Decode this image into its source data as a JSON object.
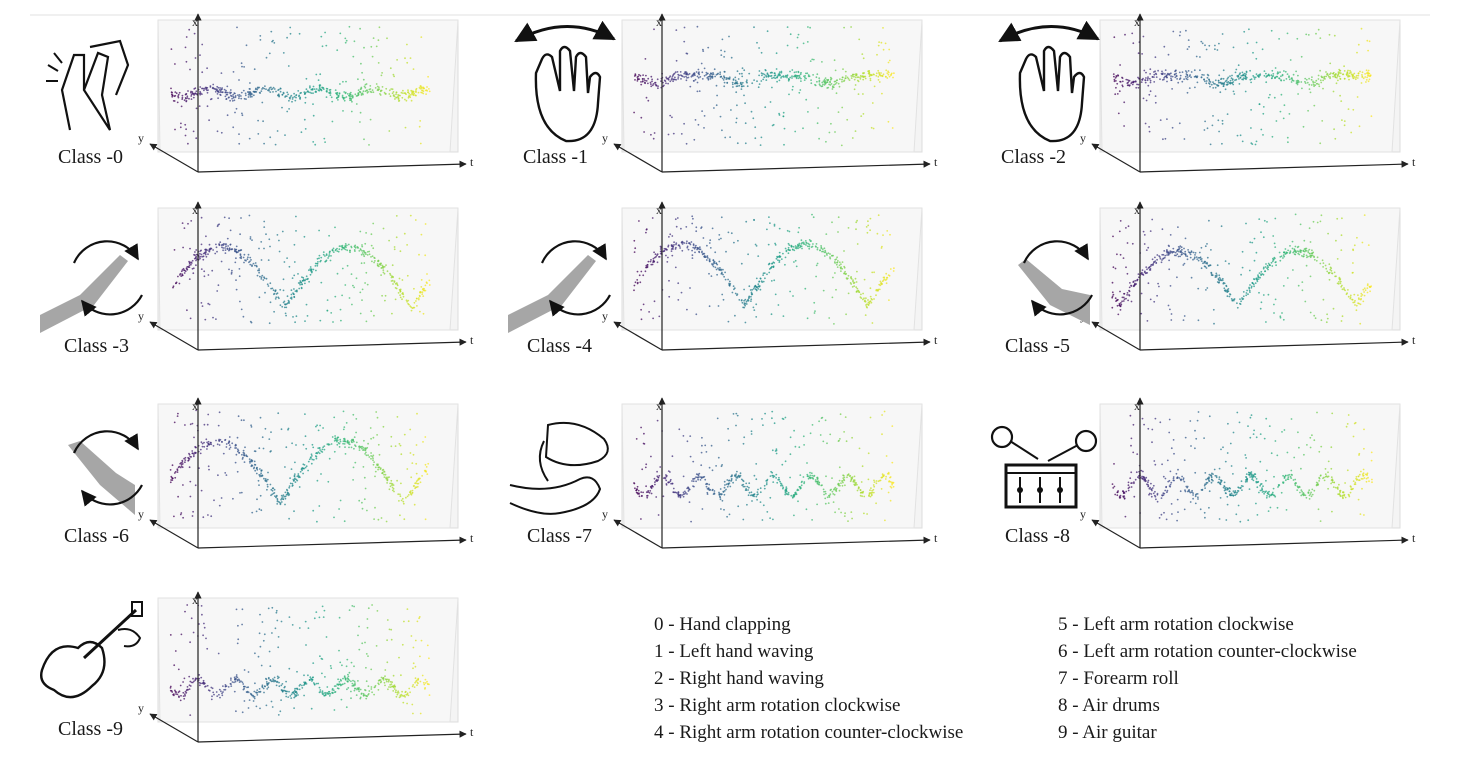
{
  "axes": {
    "x": "x",
    "y": "y",
    "t": "t"
  },
  "panels": [
    {
      "label": "Class -0",
      "pattern": "band",
      "icon": "hand-clapping-icon"
    },
    {
      "label": "Class -1",
      "pattern": "band-dips",
      "icon": "left-hand-waving-icon"
    },
    {
      "label": "Class -2",
      "pattern": "band-dips",
      "icon": "right-hand-waving-icon"
    },
    {
      "label": "Class -3",
      "pattern": "wave2",
      "icon": "right-arm-clockwise-icon"
    },
    {
      "label": "Class -4",
      "pattern": "wave2b",
      "icon": "right-arm-counter-clockwise-icon"
    },
    {
      "label": "Class -5",
      "pattern": "wave2c",
      "icon": "left-arm-clockwise-icon"
    },
    {
      "label": "Class -6",
      "pattern": "wave2b",
      "icon": "left-arm-counter-clockwise-icon"
    },
    {
      "label": "Class -7",
      "pattern": "twist",
      "icon": "forearm-roll-icon"
    },
    {
      "label": "Class -8",
      "pattern": "twist",
      "icon": "air-drums-icon"
    },
    {
      "label": "Class -9",
      "pattern": "lowwave",
      "icon": "air-guitar-icon"
    }
  ],
  "legend": {
    "left": [
      "0 - Hand clapping",
      "1 - Left hand waving",
      "2 - Right hand waving",
      "3 - Right arm rotation clockwise",
      "4 - Right arm rotation counter-clockwise"
    ],
    "right": [
      "5 - Left arm rotation clockwise",
      "6 - Left arm rotation counter-clockwise",
      "7 - Forearm roll",
      "8 - Air drums",
      "9 - Air guitar"
    ]
  }
}
